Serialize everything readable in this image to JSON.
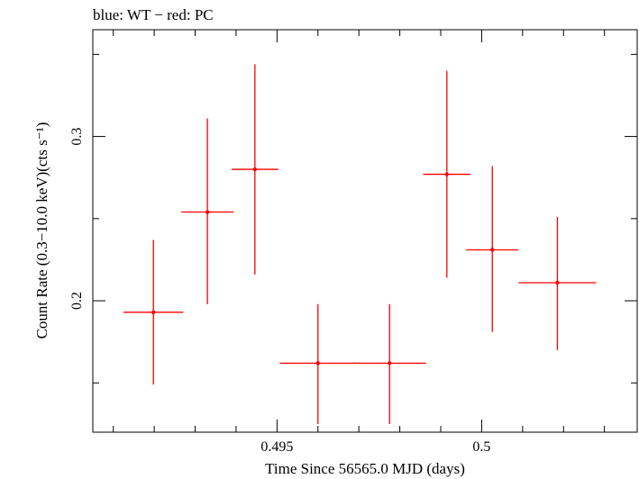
{
  "chart_data": {
    "type": "scatter",
    "title": "blue: WT − red: PC",
    "xlabel": "Time Since 56565.0 MJD (days)",
    "ylabel": "Count Rate (0.3−10.0 keV)(cts s⁻¹)",
    "xlim": [
      0.4905,
      0.5038
    ],
    "ylim": [
      0.12,
      0.365
    ],
    "x_ticks": [
      {
        "value": 0.495,
        "label": "0.495"
      },
      {
        "value": 0.5,
        "label": "0.5"
      }
    ],
    "y_ticks": [
      {
        "value": 0.2,
        "label": "0.2"
      },
      {
        "value": 0.3,
        "label": "0.3"
      }
    ],
    "grid": false,
    "series": [
      {
        "name": "PC",
        "color": "#ff0000",
        "points": [
          {
            "x": 0.49198,
            "y": 0.193,
            "xerr": 0.00073,
            "ylo": 0.149,
            "yhi": 0.237
          },
          {
            "x": 0.4933,
            "y": 0.254,
            "xerr": 0.00064,
            "ylo": 0.198,
            "yhi": 0.311
          },
          {
            "x": 0.49446,
            "y": 0.28,
            "xerr": 0.00057,
            "ylo": 0.216,
            "yhi": 0.344
          },
          {
            "x": 0.496,
            "y": 0.162,
            "xerr": 0.00093,
            "ylo": 0.125,
            "yhi": 0.198
          },
          {
            "x": 0.49775,
            "y": 0.162,
            "xerr": 0.00089,
            "ylo": 0.125,
            "yhi": 0.198
          },
          {
            "x": 0.49915,
            "y": 0.277,
            "xerr": 0.00058,
            "ylo": 0.214,
            "yhi": 0.34
          },
          {
            "x": 0.50026,
            "y": 0.231,
            "xerr": 0.00064,
            "ylo": 0.181,
            "yhi": 0.282
          },
          {
            "x": 0.50185,
            "y": 0.211,
            "xerr": 0.00095,
            "ylo": 0.17,
            "yhi": 0.251
          }
        ]
      }
    ]
  }
}
